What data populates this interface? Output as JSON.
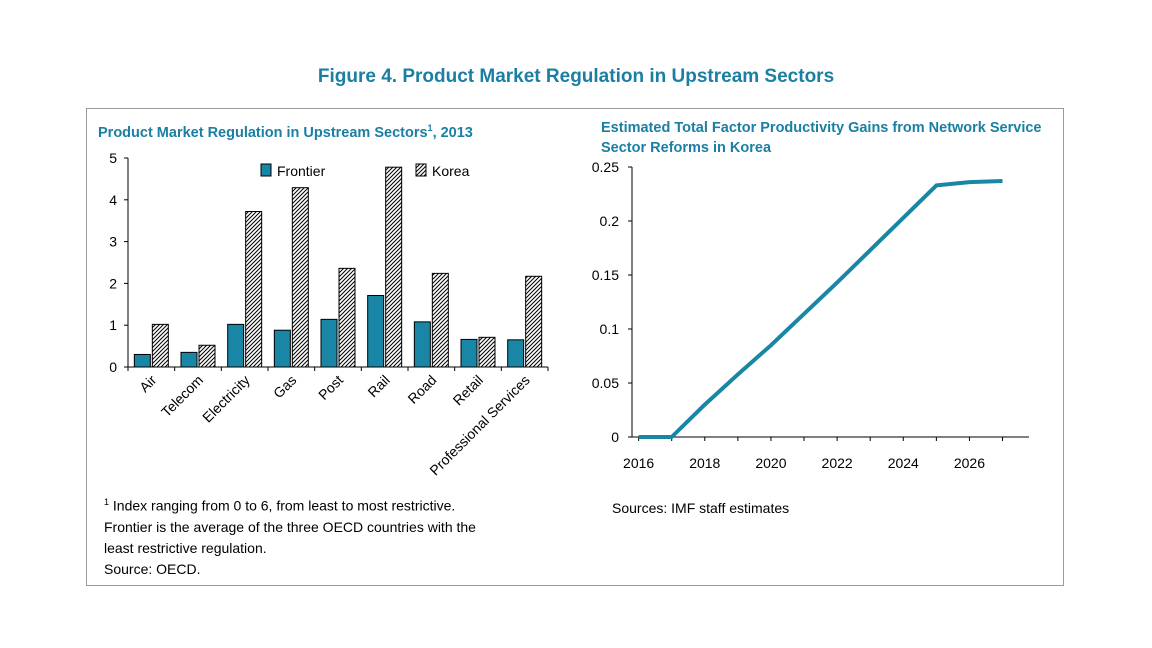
{
  "figure_title": "Figure 4. Product Market Regulation in Upstream Sectors",
  "left_panel": {
    "title": "Product Market Regulation in Upstream Sectors",
    "title_sup": "1",
    "title_suffix": ", 2013",
    "note_sup": "1",
    "note_lines": [
      "Index ranging from 0 to 6, from least to most restrictive.",
      "Frontier is the average of the three OECD countries with the",
      "least restrictive regulation.",
      "Source: OECD."
    ]
  },
  "right_panel": {
    "title": "Estimated Total Factor Productivity Gains from Network Service Sector Reforms in Korea",
    "source": "Sources: IMF staff estimates"
  },
  "colors": {
    "title": "#1a7fa3",
    "frontier": "#1a86a6",
    "line": "#1a86a6"
  },
  "chart_data": [
    {
      "type": "bar",
      "title": "Product Market Regulation in Upstream Sectors1, 2013",
      "categories": [
        "Air",
        "Telecom",
        "Electricity",
        "Gas",
        "Post",
        "Rail",
        "Road",
        "Retail",
        "Professional Services"
      ],
      "series": [
        {
          "name": "Frontier",
          "values": [
            0.3,
            0.35,
            1.02,
            0.88,
            1.14,
            1.71,
            1.08,
            0.66,
            0.65
          ]
        },
        {
          "name": "Korea",
          "values": [
            1.02,
            0.52,
            3.72,
            4.29,
            2.36,
            4.78,
            2.24,
            0.71,
            2.17
          ]
        }
      ],
      "ylim": [
        0,
        5
      ],
      "yticks": [
        "0",
        "1",
        "2",
        "3",
        "4",
        "5"
      ],
      "legend": "top",
      "grid": false
    },
    {
      "type": "line",
      "title": "Estimated Total Factor Productivity Gains from Network Service Sector Reforms in Korea",
      "x": [
        2016,
        2017,
        2018,
        2019,
        2020,
        2021,
        2022,
        2023,
        2024,
        2025,
        2026,
        2027
      ],
      "values": [
        0,
        0,
        0.03,
        0.058,
        0.085,
        0.114,
        0.143,
        0.173,
        0.203,
        0.233,
        0.236,
        0.237
      ],
      "xlim": [
        2015.8,
        2027.8
      ],
      "ylim": [
        0,
        0.25
      ],
      "xticks": [
        "2016",
        "2018",
        "2020",
        "2022",
        "2024",
        "2026"
      ],
      "yticks": [
        "0",
        "0.05",
        "0.1",
        "0.15",
        "0.2",
        "0.25"
      ],
      "grid": false
    }
  ]
}
